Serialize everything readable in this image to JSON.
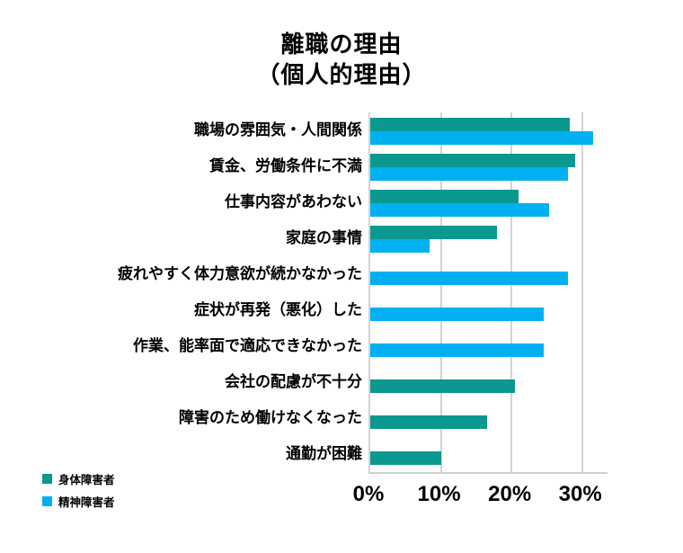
{
  "chart_data": {
    "type": "bar",
    "orientation": "horizontal",
    "title": "離職の理由",
    "subtitle": "（個人的理由）",
    "categories": [
      "職場の雰囲気・人間関係",
      "賃金、労働条件に不満",
      "仕事内容があわない",
      "家庭の事情",
      "疲れやすく体力意欲が続かなかった",
      "症状が再発（悪化）した",
      "作業、能率面で適応できなかった",
      "会社の配慮が不十分",
      "障害のため働けなくなった",
      "通勤が困難"
    ],
    "series": [
      {
        "name": "身体障害者",
        "key": "physical-disability",
        "color": "#0A9890",
        "values": [
          28.3,
          29.0,
          21.0,
          17.9,
          null,
          null,
          null,
          20.5,
          16.6,
          10.0
        ]
      },
      {
        "name": "精神障害者",
        "key": "mental-disability",
        "color": "#00B0F0",
        "values": [
          31.5,
          28.0,
          25.3,
          8.4,
          28.0,
          24.6,
          24.6,
          null,
          null,
          null
        ]
      }
    ],
    "x_axis": {
      "tick_labels": [
        "0%",
        "10%",
        "20%",
        "30%"
      ],
      "tick_values": [
        0,
        10,
        20,
        30
      ],
      "min": 0,
      "max": 33.6,
      "unit": "%"
    },
    "grid": "vertical-only",
    "legend_position": "bottom-left",
    "colors": {
      "grid": "#D2D2D2",
      "axis": "#D2D2D2",
      "background": "#FFFFFF",
      "text": "#000000"
    }
  }
}
